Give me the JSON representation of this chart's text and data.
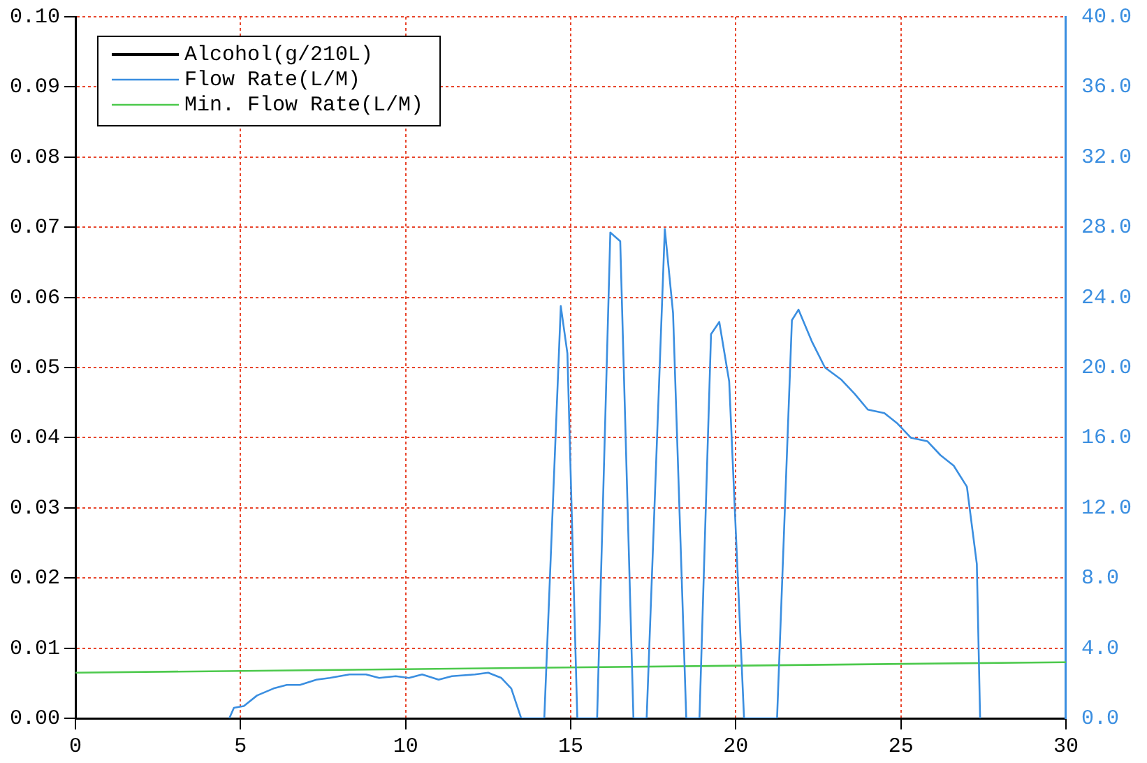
{
  "chart_data": {
    "type": "line",
    "xlim": [
      0,
      30
    ],
    "xticks": [
      0,
      5,
      10,
      15,
      20,
      25,
      30
    ],
    "ylim": [
      0,
      0.1
    ],
    "yticks": [
      {
        "value": 0,
        "label": "0.00"
      },
      {
        "value": 0.01,
        "label": "0.01"
      },
      {
        "value": 0.02,
        "label": "0.02"
      },
      {
        "value": 0.03,
        "label": "0.03"
      },
      {
        "value": 0.04,
        "label": "0.04"
      },
      {
        "value": 0.05,
        "label": "0.05"
      },
      {
        "value": 0.06,
        "label": "0.06"
      },
      {
        "value": 0.07,
        "label": "0.07"
      },
      {
        "value": 0.08,
        "label": "0.08"
      },
      {
        "value": 0.09,
        "label": "0.09"
      },
      {
        "value": 0.1,
        "label": "0.10"
      }
    ],
    "y2lim": [
      0,
      40
    ],
    "y2ticks": [
      {
        "value": 0,
        "label": "0.0"
      },
      {
        "value": 4,
        "label": "4.0"
      },
      {
        "value": 8,
        "label": "8.0"
      },
      {
        "value": 12,
        "label": "12.0"
      },
      {
        "value": 16,
        "label": "16.0"
      },
      {
        "value": 20,
        "label": "20.0"
      },
      {
        "value": 24,
        "label": "24.0"
      },
      {
        "value": 28,
        "label": "28.0"
      },
      {
        "value": 32,
        "label": "32.0"
      },
      {
        "value": 36,
        "label": "36.0"
      },
      {
        "value": 40,
        "label": "40.0"
      }
    ],
    "grid": true,
    "legend": "top left",
    "marker": "none",
    "line_style": "solid",
    "series": [
      {
        "name": "Alcohol(g/210L)",
        "color": "#000000"
      },
      {
        "name": "Flow Rate(L/M)",
        "color": "#3a8ee0",
        "axis": "y2",
        "x": [
          4.66,
          4.8,
          5.1,
          5.5,
          6.0,
          6.4,
          6.8,
          7.3,
          7.7,
          8.3,
          8.8,
          9.2,
          9.7,
          10.1,
          10.5,
          11.0,
          11.4,
          12.1,
          12.5,
          12.9,
          13.2,
          13.5,
          14.2,
          14.7,
          14.9,
          15.2,
          15.8,
          16.2,
          16.5,
          16.9,
          17.3,
          17.85,
          18.1,
          18.5,
          18.9,
          19.25,
          19.5,
          19.8,
          20.25,
          21.25,
          21.7,
          21.9,
          22.3,
          22.7,
          23.2,
          23.6,
          24.0,
          24.5,
          24.9,
          25.3,
          25.8,
          26.2,
          26.6,
          27.0,
          27.3,
          27.4
        ],
        "values": [
          0,
          0.6,
          0.7,
          1.3,
          1.7,
          1.9,
          1.9,
          2.2,
          2.3,
          2.5,
          2.5,
          2.3,
          2.4,
          2.3,
          2.5,
          2.2,
          2.4,
          2.5,
          2.6,
          2.3,
          1.7,
          0,
          0,
          23.5,
          20.8,
          0,
          0,
          27.7,
          27.2,
          0,
          0,
          27.9,
          23.1,
          0,
          0,
          21.9,
          22.6,
          19.2,
          0,
          0,
          22.7,
          23.3,
          21.5,
          20.0,
          19.3,
          18.5,
          17.6,
          17.4,
          16.8,
          16.0,
          15.8,
          15.0,
          14.4,
          13.2,
          8.8,
          0
        ]
      },
      {
        "name": "Min. Flow Rate(L/M)",
        "color": "#4cc94c",
        "axis": "y2",
        "x": [
          0,
          30
        ],
        "values": [
          2.6,
          3.2
        ]
      }
    ]
  }
}
